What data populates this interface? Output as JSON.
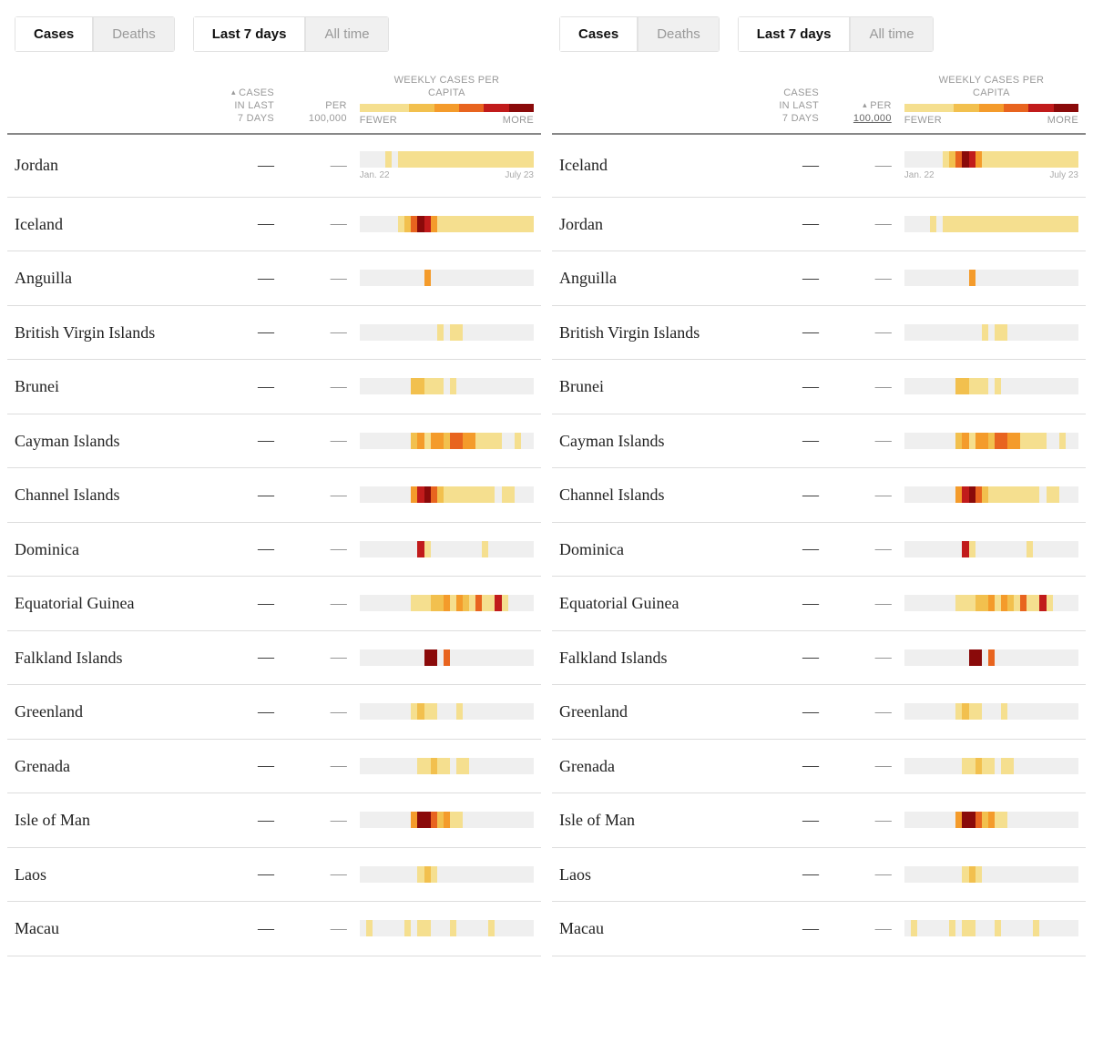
{
  "colors": {
    "empty": "#efefef",
    "scale": [
      "#f5df8f",
      "#f2c04e",
      "#f49b2b",
      "#e8641f",
      "#c11b1b",
      "#8a0a0a"
    ],
    "tab_inactive_bg": "#f0f0f0",
    "tab_border": "#e2e2e2",
    "divider": "#dddddd",
    "header_divider": "#888888",
    "muted_text": "#999999"
  },
  "tabs": {
    "metric": {
      "active": "Cases",
      "inactive": "Deaths"
    },
    "range": {
      "active": "Last 7 days",
      "inactive": "All time"
    }
  },
  "headers": {
    "cases_line1": "CASES",
    "cases_line2": "IN LAST",
    "cases_line3": "7 DAYS",
    "per_line1": "PER",
    "per_line2": "100,000",
    "legend_title_line1": "WEEKLY CASES PER",
    "legend_title_line2": "CAPITA",
    "legend_fewer": "FEWER",
    "legend_more": "MORE",
    "sort_caret": "▴"
  },
  "axis": {
    "start": "Jan. 22",
    "end": "July 23"
  },
  "dash": "—",
  "legend_stops": [
    0,
    0,
    1,
    2,
    3,
    4,
    5
  ],
  "panels": [
    {
      "sort": "cases",
      "rows": [
        {
          "country": "Jordan",
          "cases": "—",
          "per": "—",
          "show_axis": true,
          "spark": [
            -1,
            -1,
            -1,
            -1,
            0,
            -1,
            0,
            0,
            0,
            0,
            0,
            0,
            0,
            0,
            0,
            0,
            0,
            0,
            0,
            0,
            0,
            0,
            0,
            0,
            0,
            0,
            0
          ]
        },
        {
          "country": "Iceland",
          "cases": "—",
          "per": "—",
          "spark": [
            -1,
            -1,
            -1,
            -1,
            -1,
            -1,
            0,
            1,
            3,
            5,
            4,
            2,
            0,
            0,
            0,
            0,
            0,
            0,
            0,
            0,
            0,
            0,
            0,
            0,
            0,
            0,
            0
          ]
        },
        {
          "country": "Anguilla",
          "cases": "—",
          "per": "—",
          "spark": [
            -1,
            -1,
            -1,
            -1,
            -1,
            -1,
            -1,
            -1,
            -1,
            -1,
            2,
            -1,
            -1,
            -1,
            -1,
            -1,
            -1,
            -1,
            -1,
            -1,
            -1,
            -1,
            -1,
            -1,
            -1,
            -1,
            -1
          ]
        },
        {
          "country": "British Virgin Islands",
          "cases": "—",
          "per": "—",
          "spark": [
            -1,
            -1,
            -1,
            -1,
            -1,
            -1,
            -1,
            -1,
            -1,
            -1,
            -1,
            -1,
            0,
            -1,
            0,
            0,
            -1,
            -1,
            -1,
            -1,
            -1,
            -1,
            -1,
            -1,
            -1,
            -1,
            -1
          ]
        },
        {
          "country": "Brunei",
          "cases": "—",
          "per": "—",
          "spark": [
            -1,
            -1,
            -1,
            -1,
            -1,
            -1,
            -1,
            -1,
            1,
            1,
            0,
            0,
            0,
            -1,
            0,
            -1,
            -1,
            -1,
            -1,
            -1,
            -1,
            -1,
            -1,
            -1,
            -1,
            -1,
            -1
          ]
        },
        {
          "country": "Cayman Islands",
          "cases": "—",
          "per": "—",
          "spark": [
            -1,
            -1,
            -1,
            -1,
            -1,
            -1,
            -1,
            -1,
            1,
            2,
            0,
            2,
            2,
            1,
            3,
            3,
            2,
            2,
            0,
            0,
            0,
            0,
            -1,
            -1,
            0,
            -1,
            -1
          ]
        },
        {
          "country": "Channel Islands",
          "cases": "—",
          "per": "—",
          "spark": [
            -1,
            -1,
            -1,
            -1,
            -1,
            -1,
            -1,
            -1,
            2,
            4,
            5,
            3,
            1,
            0,
            0,
            0,
            0,
            0,
            0,
            0,
            0,
            -1,
            0,
            0,
            -1,
            -1,
            -1
          ]
        },
        {
          "country": "Dominica",
          "cases": "—",
          "per": "—",
          "spark": [
            -1,
            -1,
            -1,
            -1,
            -1,
            -1,
            -1,
            -1,
            -1,
            4,
            0,
            -1,
            -1,
            -1,
            -1,
            -1,
            -1,
            -1,
            -1,
            0,
            -1,
            -1,
            -1,
            -1,
            -1,
            -1,
            -1
          ]
        },
        {
          "country": "Equatorial Guinea",
          "cases": "—",
          "per": "—",
          "spark": [
            -1,
            -1,
            -1,
            -1,
            -1,
            -1,
            -1,
            -1,
            0,
            0,
            0,
            1,
            1,
            2,
            0,
            2,
            1,
            0,
            3,
            0,
            0,
            4,
            0,
            -1,
            -1,
            -1,
            -1
          ]
        },
        {
          "country": "Falkland Islands",
          "cases": "—",
          "per": "—",
          "spark": [
            -1,
            -1,
            -1,
            -1,
            -1,
            -1,
            -1,
            -1,
            -1,
            -1,
            5,
            5,
            -1,
            3,
            -1,
            -1,
            -1,
            -1,
            -1,
            -1,
            -1,
            -1,
            -1,
            -1,
            -1,
            -1,
            -1
          ]
        },
        {
          "country": "Greenland",
          "cases": "—",
          "per": "—",
          "spark": [
            -1,
            -1,
            -1,
            -1,
            -1,
            -1,
            -1,
            -1,
            0,
            1,
            0,
            0,
            -1,
            -1,
            -1,
            0,
            -1,
            -1,
            -1,
            -1,
            -1,
            -1,
            -1,
            -1,
            -1,
            -1,
            -1
          ]
        },
        {
          "country": "Grenada",
          "cases": "—",
          "per": "—",
          "spark": [
            -1,
            -1,
            -1,
            -1,
            -1,
            -1,
            -1,
            -1,
            -1,
            0,
            0,
            1,
            0,
            0,
            -1,
            0,
            0,
            -1,
            -1,
            -1,
            -1,
            -1,
            -1,
            -1,
            -1,
            -1,
            -1
          ]
        },
        {
          "country": "Isle of Man",
          "cases": "—",
          "per": "—",
          "spark": [
            -1,
            -1,
            -1,
            -1,
            -1,
            -1,
            -1,
            -1,
            2,
            5,
            5,
            3,
            1,
            2,
            0,
            0,
            -1,
            -1,
            -1,
            -1,
            -1,
            -1,
            -1,
            -1,
            -1,
            -1,
            -1
          ]
        },
        {
          "country": "Laos",
          "cases": "—",
          "per": "—",
          "spark": [
            -1,
            -1,
            -1,
            -1,
            -1,
            -1,
            -1,
            -1,
            -1,
            0,
            1,
            0,
            -1,
            -1,
            -1,
            -1,
            -1,
            -1,
            -1,
            -1,
            -1,
            -1,
            -1,
            -1,
            -1,
            -1,
            -1
          ]
        },
        {
          "country": "Macau",
          "cases": "—",
          "per": "—",
          "spark": [
            -1,
            0,
            -1,
            -1,
            -1,
            -1,
            -1,
            0,
            -1,
            0,
            0,
            -1,
            -1,
            -1,
            0,
            -1,
            -1,
            -1,
            -1,
            -1,
            0,
            -1,
            -1,
            -1,
            -1,
            -1,
            -1
          ]
        }
      ]
    },
    {
      "sort": "per",
      "rows": [
        {
          "country": "Iceland",
          "cases": "—",
          "per": "—",
          "show_axis": true,
          "spark": [
            -1,
            -1,
            -1,
            -1,
            -1,
            -1,
            0,
            1,
            3,
            5,
            4,
            2,
            0,
            0,
            0,
            0,
            0,
            0,
            0,
            0,
            0,
            0,
            0,
            0,
            0,
            0,
            0
          ]
        },
        {
          "country": "Jordan",
          "cases": "—",
          "per": "—",
          "spark": [
            -1,
            -1,
            -1,
            -1,
            0,
            -1,
            0,
            0,
            0,
            0,
            0,
            0,
            0,
            0,
            0,
            0,
            0,
            0,
            0,
            0,
            0,
            0,
            0,
            0,
            0,
            0,
            0
          ]
        },
        {
          "country": "Anguilla",
          "cases": "—",
          "per": "—",
          "spark": [
            -1,
            -1,
            -1,
            -1,
            -1,
            -1,
            -1,
            -1,
            -1,
            -1,
            2,
            -1,
            -1,
            -1,
            -1,
            -1,
            -1,
            -1,
            -1,
            -1,
            -1,
            -1,
            -1,
            -1,
            -1,
            -1,
            -1
          ]
        },
        {
          "country": "British Virgin Islands",
          "cases": "—",
          "per": "—",
          "spark": [
            -1,
            -1,
            -1,
            -1,
            -1,
            -1,
            -1,
            -1,
            -1,
            -1,
            -1,
            -1,
            0,
            -1,
            0,
            0,
            -1,
            -1,
            -1,
            -1,
            -1,
            -1,
            -1,
            -1,
            -1,
            -1,
            -1
          ]
        },
        {
          "country": "Brunei",
          "cases": "—",
          "per": "—",
          "spark": [
            -1,
            -1,
            -1,
            -1,
            -1,
            -1,
            -1,
            -1,
            1,
            1,
            0,
            0,
            0,
            -1,
            0,
            -1,
            -1,
            -1,
            -1,
            -1,
            -1,
            -1,
            -1,
            -1,
            -1,
            -1,
            -1
          ]
        },
        {
          "country": "Cayman Islands",
          "cases": "—",
          "per": "—",
          "spark": [
            -1,
            -1,
            -1,
            -1,
            -1,
            -1,
            -1,
            -1,
            1,
            2,
            0,
            2,
            2,
            1,
            3,
            3,
            2,
            2,
            0,
            0,
            0,
            0,
            -1,
            -1,
            0,
            -1,
            -1
          ]
        },
        {
          "country": "Channel Islands",
          "cases": "—",
          "per": "—",
          "spark": [
            -1,
            -1,
            -1,
            -1,
            -1,
            -1,
            -1,
            -1,
            2,
            4,
            5,
            3,
            1,
            0,
            0,
            0,
            0,
            0,
            0,
            0,
            0,
            -1,
            0,
            0,
            -1,
            -1,
            -1
          ]
        },
        {
          "country": "Dominica",
          "cases": "—",
          "per": "—",
          "spark": [
            -1,
            -1,
            -1,
            -1,
            -1,
            -1,
            -1,
            -1,
            -1,
            4,
            0,
            -1,
            -1,
            -1,
            -1,
            -1,
            -1,
            -1,
            -1,
            0,
            -1,
            -1,
            -1,
            -1,
            -1,
            -1,
            -1
          ]
        },
        {
          "country": "Equatorial Guinea",
          "cases": "—",
          "per": "—",
          "spark": [
            -1,
            -1,
            -1,
            -1,
            -1,
            -1,
            -1,
            -1,
            0,
            0,
            0,
            1,
            1,
            2,
            0,
            2,
            1,
            0,
            3,
            0,
            0,
            4,
            0,
            -1,
            -1,
            -1,
            -1
          ]
        },
        {
          "country": "Falkland Islands",
          "cases": "—",
          "per": "—",
          "spark": [
            -1,
            -1,
            -1,
            -1,
            -1,
            -1,
            -1,
            -1,
            -1,
            -1,
            5,
            5,
            -1,
            3,
            -1,
            -1,
            -1,
            -1,
            -1,
            -1,
            -1,
            -1,
            -1,
            -1,
            -1,
            -1,
            -1
          ]
        },
        {
          "country": "Greenland",
          "cases": "—",
          "per": "—",
          "spark": [
            -1,
            -1,
            -1,
            -1,
            -1,
            -1,
            -1,
            -1,
            0,
            1,
            0,
            0,
            -1,
            -1,
            -1,
            0,
            -1,
            -1,
            -1,
            -1,
            -1,
            -1,
            -1,
            -1,
            -1,
            -1,
            -1
          ]
        },
        {
          "country": "Grenada",
          "cases": "—",
          "per": "—",
          "spark": [
            -1,
            -1,
            -1,
            -1,
            -1,
            -1,
            -1,
            -1,
            -1,
            0,
            0,
            1,
            0,
            0,
            -1,
            0,
            0,
            -1,
            -1,
            -1,
            -1,
            -1,
            -1,
            -1,
            -1,
            -1,
            -1
          ]
        },
        {
          "country": "Isle of Man",
          "cases": "—",
          "per": "—",
          "spark": [
            -1,
            -1,
            -1,
            -1,
            -1,
            -1,
            -1,
            -1,
            2,
            5,
            5,
            3,
            1,
            2,
            0,
            0,
            -1,
            -1,
            -1,
            -1,
            -1,
            -1,
            -1,
            -1,
            -1,
            -1,
            -1
          ]
        },
        {
          "country": "Laos",
          "cases": "—",
          "per": "—",
          "spark": [
            -1,
            -1,
            -1,
            -1,
            -1,
            -1,
            -1,
            -1,
            -1,
            0,
            1,
            0,
            -1,
            -1,
            -1,
            -1,
            -1,
            -1,
            -1,
            -1,
            -1,
            -1,
            -1,
            -1,
            -1,
            -1,
            -1
          ]
        },
        {
          "country": "Macau",
          "cases": "—",
          "per": "—",
          "spark": [
            -1,
            0,
            -1,
            -1,
            -1,
            -1,
            -1,
            0,
            -1,
            0,
            0,
            -1,
            -1,
            -1,
            0,
            -1,
            -1,
            -1,
            -1,
            -1,
            0,
            -1,
            -1,
            -1,
            -1,
            -1,
            -1
          ]
        }
      ]
    }
  ]
}
